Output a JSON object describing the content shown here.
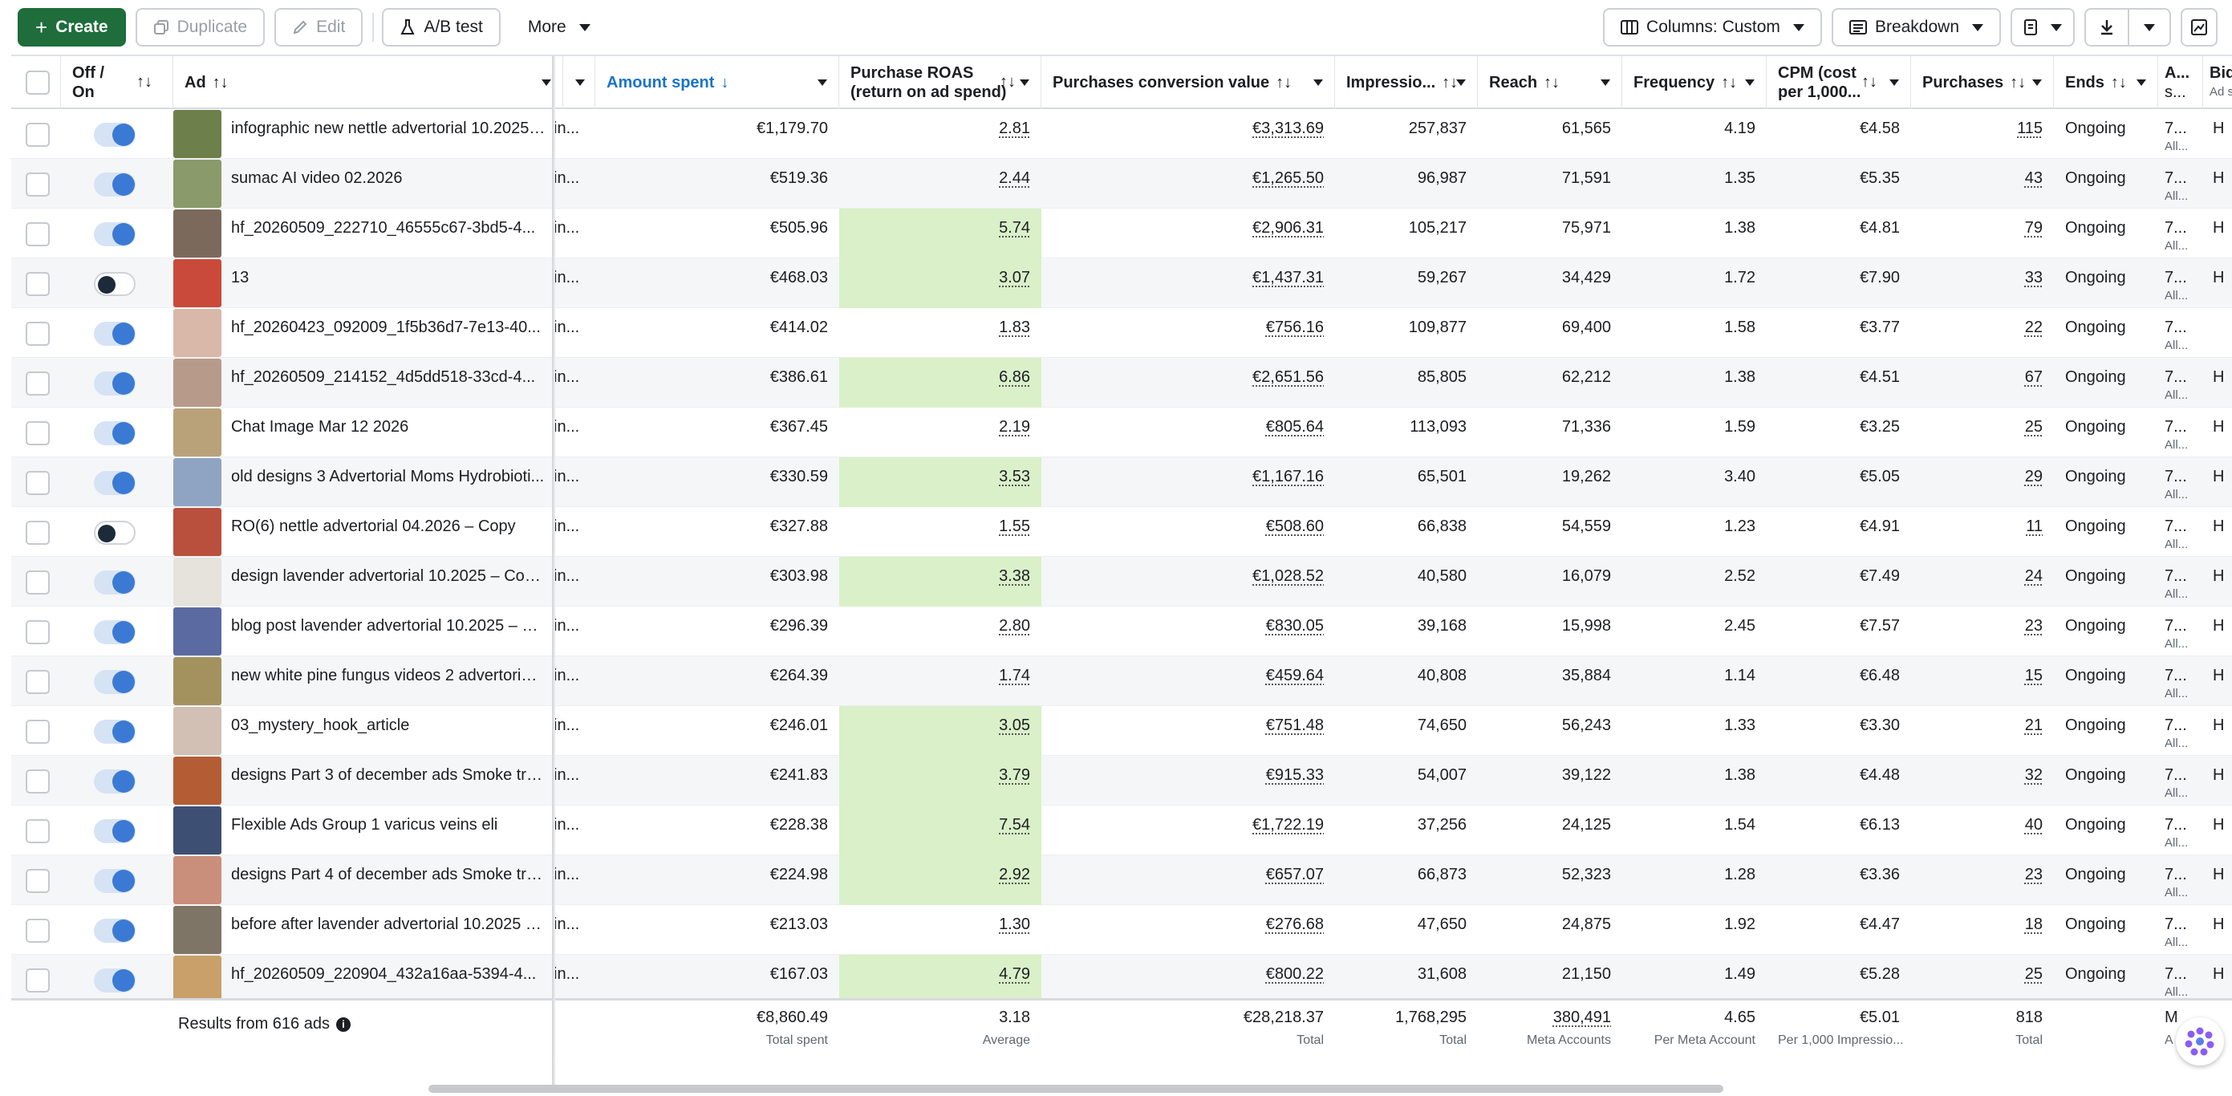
{
  "toolbar": {
    "create": "Create",
    "duplicate": "Duplicate",
    "edit": "Edit",
    "ab_test": "A/B test",
    "more": "More",
    "columns": "Columns: Custom",
    "breakdown": "Breakdown"
  },
  "headers": {
    "off_on": "Off / On",
    "ad": "Ad",
    "amount_spent": "Amount spent",
    "purchase_roas_1": "Purchase ROAS",
    "purchase_roas_2": "(return on ad spend)",
    "conv_value": "Purchases conversion value",
    "impressions": "Impressio...",
    "reach": "Reach",
    "frequency": "Frequency",
    "cpm_1": "CPM (cost",
    "cpm_2": "per 1,000...",
    "purchases": "Purchases",
    "ends": "Ends",
    "attr_1": "A...",
    "attr_2": "s...",
    "bid_1": "Bid",
    "bid_2": "Ad s",
    "sort_arrows": "↑↓",
    "sort_down": "↓"
  },
  "rows": [
    {
      "on": true,
      "name": "infographic new nettle advertorial 10.2025 ...",
      "partial": "in...",
      "spent": "€1,179.70",
      "roas": "2.81",
      "roas_hl": false,
      "value": "€3,313.69",
      "impr": "257,837",
      "reach": "61,565",
      "freq": "4.19",
      "cpm": "€4.58",
      "purch": "115",
      "ends": "Ongoing",
      "attr": "7...",
      "attr_sub": "All...",
      "bid": "H",
      "thumb": "#6d7f4a"
    },
    {
      "on": true,
      "name": "sumac AI video 02.2026",
      "partial": "in...",
      "spent": "€519.36",
      "roas": "2.44",
      "roas_hl": false,
      "value": "€1,265.50",
      "impr": "96,987",
      "reach": "71,591",
      "freq": "1.35",
      "cpm": "€5.35",
      "purch": "43",
      "ends": "Ongoing",
      "attr": "7...",
      "attr_sub": "All...",
      "bid": "H",
      "thumb": "#8a9a6b"
    },
    {
      "on": true,
      "name": "hf_20260509_222710_46555c67-3bd5-4...",
      "partial": "in...",
      "spent": "€505.96",
      "roas": "5.74",
      "roas_hl": true,
      "value": "€2,906.31",
      "impr": "105,217",
      "reach": "75,971",
      "freq": "1.38",
      "cpm": "€4.81",
      "purch": "79",
      "ends": "Ongoing",
      "attr": "7...",
      "attr_sub": "All...",
      "bid": "H",
      "thumb": "#7b6a5c"
    },
    {
      "on": false,
      "name": "13",
      "partial": "in...",
      "spent": "€468.03",
      "roas": "3.07",
      "roas_hl": true,
      "value": "€1,437.31",
      "impr": "59,267",
      "reach": "34,429",
      "freq": "1.72",
      "cpm": "€7.90",
      "purch": "33",
      "ends": "Ongoing",
      "attr": "7...",
      "attr_sub": "All...",
      "bid": "H",
      "thumb": "#c94a3a"
    },
    {
      "on": true,
      "name": "hf_20260423_092009_1f5b36d7-7e13-40...",
      "partial": "in...",
      "spent": "€414.02",
      "roas": "1.83",
      "roas_hl": false,
      "value": "€756.16",
      "impr": "109,877",
      "reach": "69,400",
      "freq": "1.58",
      "cpm": "€3.77",
      "purch": "22",
      "ends": "Ongoing",
      "attr": "7...",
      "attr_sub": "All...",
      "bid": "",
      "thumb": "#d9b8aa"
    },
    {
      "on": true,
      "name": "hf_20260509_214152_4d5dd518-33cd-4...",
      "partial": "in...",
      "spent": "€386.61",
      "roas": "6.86",
      "roas_hl": true,
      "value": "€2,651.56",
      "impr": "85,805",
      "reach": "62,212",
      "freq": "1.38",
      "cpm": "€4.51",
      "purch": "67",
      "ends": "Ongoing",
      "attr": "7...",
      "attr_sub": "All...",
      "bid": "H",
      "thumb": "#b89a8a"
    },
    {
      "on": true,
      "name": "Chat Image Mar 12 2026",
      "partial": "in...",
      "spent": "€367.45",
      "roas": "2.19",
      "roas_hl": false,
      "value": "€805.64",
      "impr": "113,093",
      "reach": "71,336",
      "freq": "1.59",
      "cpm": "€3.25",
      "purch": "25",
      "ends": "Ongoing",
      "attr": "7...",
      "attr_sub": "All...",
      "bid": "H",
      "thumb": "#b9a27a"
    },
    {
      "on": true,
      "name": "old designs 3 Advertorial Moms Hydrobioti...",
      "partial": "in...",
      "spent": "€330.59",
      "roas": "3.53",
      "roas_hl": true,
      "value": "€1,167.16",
      "impr": "65,501",
      "reach": "19,262",
      "freq": "3.40",
      "cpm": "€5.05",
      "purch": "29",
      "ends": "Ongoing",
      "attr": "7...",
      "attr_sub": "All...",
      "bid": "H",
      "thumb": "#8fa4c2"
    },
    {
      "on": false,
      "name": "RO(6) nettle advertorial 04.2026 – Copy",
      "partial": "in...",
      "spent": "€327.88",
      "roas": "1.55",
      "roas_hl": false,
      "value": "€508.60",
      "impr": "66,838",
      "reach": "54,559",
      "freq": "1.23",
      "cpm": "€4.91",
      "purch": "11",
      "ends": "Ongoing",
      "attr": "7...",
      "attr_sub": "All...",
      "bid": "H",
      "thumb": "#b9503e"
    },
    {
      "on": true,
      "name": "design lavender advertorial 10.2025 – Copy...",
      "partial": "in...",
      "spent": "€303.98",
      "roas": "3.38",
      "roas_hl": true,
      "value": "€1,028.52",
      "impr": "40,580",
      "reach": "16,079",
      "freq": "2.52",
      "cpm": "€7.49",
      "purch": "24",
      "ends": "Ongoing",
      "attr": "7...",
      "attr_sub": "All...",
      "bid": "H",
      "thumb": "#e6e2dc"
    },
    {
      "on": true,
      "name": "blog post lavender advertorial 10.2025 – C...",
      "partial": "in...",
      "spent": "€296.39",
      "roas": "2.80",
      "roas_hl": false,
      "value": "€830.05",
      "impr": "39,168",
      "reach": "15,998",
      "freq": "2.45",
      "cpm": "€7.57",
      "purch": "23",
      "ends": "Ongoing",
      "attr": "7...",
      "attr_sub": "All...",
      "bid": "H",
      "thumb": "#5b6aa0"
    },
    {
      "on": true,
      "name": "new white pine fungus videos 2 advertorial ...",
      "partial": "in...",
      "spent": "€264.39",
      "roas": "1.74",
      "roas_hl": false,
      "value": "€459.64",
      "impr": "40,808",
      "reach": "35,884",
      "freq": "1.14",
      "cpm": "€6.48",
      "purch": "15",
      "ends": "Ongoing",
      "attr": "7...",
      "attr_sub": "All...",
      "bid": "H",
      "thumb": "#a3925e"
    },
    {
      "on": true,
      "name": "03_mystery_hook_article",
      "partial": "in...",
      "spent": "€246.01",
      "roas": "3.05",
      "roas_hl": true,
      "value": "€751.48",
      "impr": "74,650",
      "reach": "56,243",
      "freq": "1.33",
      "cpm": "€3.30",
      "purch": "21",
      "ends": "Ongoing",
      "attr": "7...",
      "attr_sub": "All...",
      "bid": "H",
      "thumb": "#d2c0b4"
    },
    {
      "on": true,
      "name": "designs Part 3 of december ads Smoke tre...",
      "partial": "in...",
      "spent": "€241.83",
      "roas": "3.79",
      "roas_hl": true,
      "value": "€915.33",
      "impr": "54,007",
      "reach": "39,122",
      "freq": "1.38",
      "cpm": "€4.48",
      "purch": "32",
      "ends": "Ongoing",
      "attr": "7...",
      "attr_sub": "All...",
      "bid": "H",
      "thumb": "#b45d34"
    },
    {
      "on": true,
      "name": "Flexible Ads Group 1 varicus veins eli",
      "partial": "in...",
      "spent": "€228.38",
      "roas": "7.54",
      "roas_hl": true,
      "value": "€1,722.19",
      "impr": "37,256",
      "reach": "24,125",
      "freq": "1.54",
      "cpm": "€6.13",
      "purch": "40",
      "ends": "Ongoing",
      "attr": "7...",
      "attr_sub": "All...",
      "bid": "H",
      "thumb": "#3d4f73"
    },
    {
      "on": true,
      "name": "designs Part 4 of december ads Smoke tre...",
      "partial": "in...",
      "spent": "€224.98",
      "roas": "2.92",
      "roas_hl": true,
      "value": "€657.07",
      "impr": "66,873",
      "reach": "52,323",
      "freq": "1.28",
      "cpm": "€3.36",
      "purch": "23",
      "ends": "Ongoing",
      "attr": "7...",
      "attr_sub": "All...",
      "bid": "H",
      "thumb": "#c98f7a"
    },
    {
      "on": true,
      "name": "before after lavender advertorial 10.2025 – ...",
      "partial": "in...",
      "spent": "€213.03",
      "roas": "1.30",
      "roas_hl": false,
      "value": "€276.68",
      "impr": "47,650",
      "reach": "24,875",
      "freq": "1.92",
      "cpm": "€4.47",
      "purch": "18",
      "ends": "Ongoing",
      "attr": "7...",
      "attr_sub": "All...",
      "bid": "H",
      "thumb": "#7f7566"
    },
    {
      "on": true,
      "name": "hf_20260509_220904_432a16aa-5394-4...",
      "partial": "in...",
      "spent": "€167.03",
      "roas": "4.79",
      "roas_hl": true,
      "value": "€800.22",
      "impr": "31,608",
      "reach": "21,150",
      "freq": "1.49",
      "cpm": "€5.28",
      "purch": "25",
      "ends": "Ongoing",
      "attr": "7...",
      "attr_sub": "All...",
      "bid": "H",
      "thumb": "#c9a06a"
    }
  ],
  "summary": {
    "label": "Results from 616 ads",
    "spent": "€8,860.49",
    "spent_lbl": "Total spent",
    "roas": "3.18",
    "roas_lbl": "Average",
    "value": "€28,218.37",
    "value_lbl": "Total",
    "impr": "1,768,295",
    "impr_lbl": "Total",
    "reach": "380,491",
    "reach_lbl": "Meta Accounts",
    "freq": "4.65",
    "freq_lbl": "Per Meta Account",
    "cpm": "€5.01",
    "cpm_lbl": "Per 1,000 Impressio...",
    "purch": "818",
    "purch_lbl": "Total",
    "attr": "M",
    "attr_lbl": "A"
  },
  "colors": {
    "accent": "#1a73c9",
    "create": "#1e6d3b",
    "roas_highlight": "#d9f0c9",
    "toggle_on": "#3b7ad4"
  }
}
